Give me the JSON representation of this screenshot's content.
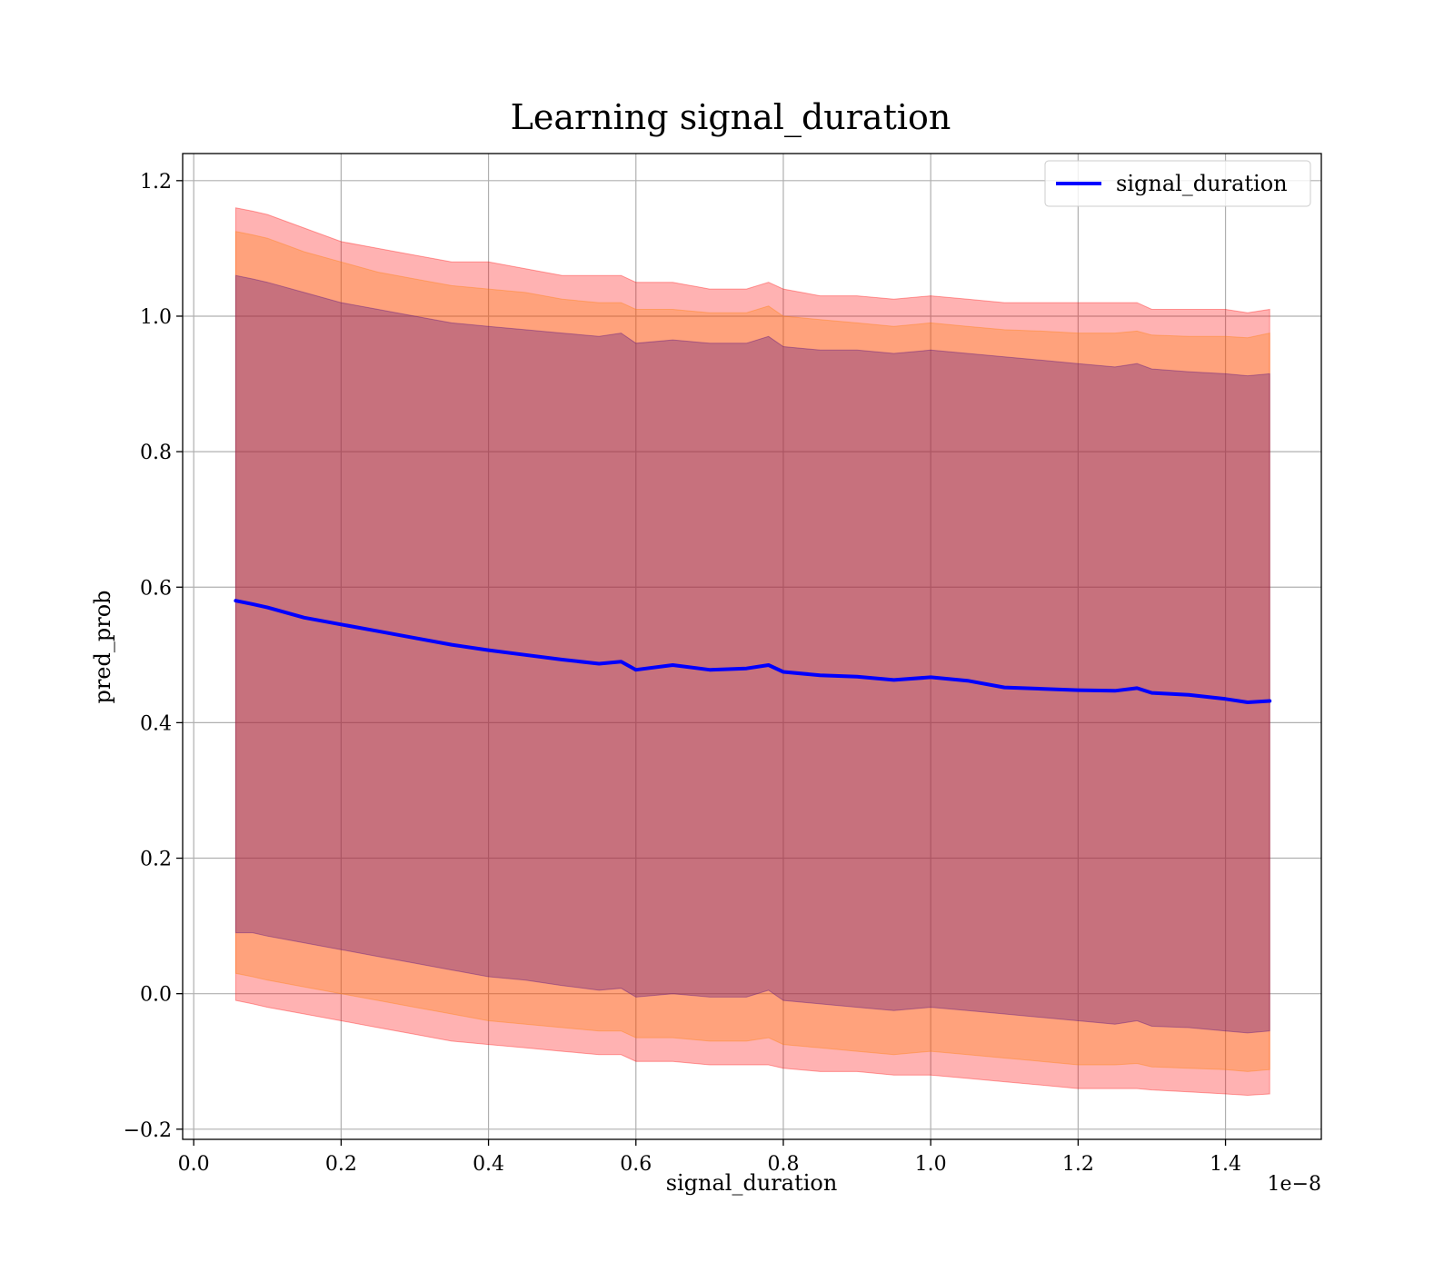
{
  "chart_data": {
    "type": "line",
    "title": "Learning signal_duration",
    "xlabel": "signal_duration",
    "ylabel": "pred_prob",
    "x_offset_label": "1e−8",
    "xlim": [
      -0.015,
      1.53
    ],
    "ylim": [
      -0.215,
      1.24
    ],
    "grid": true,
    "legend_position": "top-right",
    "x_ticks": [
      0.0,
      0.2,
      0.4,
      0.6,
      0.8,
      1.0,
      1.2,
      1.4
    ],
    "x_tick_labels": [
      "0.0",
      "0.2",
      "0.4",
      "0.6",
      "0.8",
      "1.0",
      "1.2",
      "1.4"
    ],
    "y_ticks": [
      -0.2,
      0.0,
      0.2,
      0.4,
      0.6,
      0.8,
      1.0,
      1.2
    ],
    "y_tick_labels": [
      "−0.2",
      "0.0",
      "0.2",
      "0.4",
      "0.6",
      "0.8",
      "1.0",
      "1.2"
    ],
    "x": [
      0.057,
      0.08,
      0.1,
      0.15,
      0.2,
      0.25,
      0.3,
      0.35,
      0.4,
      0.45,
      0.5,
      0.55,
      0.58,
      0.6,
      0.65,
      0.7,
      0.75,
      0.78,
      0.8,
      0.85,
      0.9,
      0.95,
      1.0,
      1.05,
      1.1,
      1.15,
      1.2,
      1.25,
      1.28,
      1.3,
      1.35,
      1.4,
      1.43,
      1.46
    ],
    "series": [
      {
        "name": "signal_duration",
        "color": "#0000ff",
        "values": [
          0.58,
          0.575,
          0.57,
          0.555,
          0.545,
          0.535,
          0.525,
          0.515,
          0.507,
          0.5,
          0.493,
          0.487,
          0.49,
          0.478,
          0.485,
          0.478,
          0.48,
          0.485,
          0.475,
          0.47,
          0.468,
          0.463,
          0.467,
          0.462,
          0.452,
          0.45,
          0.448,
          0.447,
          0.451,
          0.444,
          0.441,
          0.435,
          0.43,
          0.432
        ]
      }
    ],
    "bands": [
      {
        "color": "#ff0000",
        "opacity": 0.3,
        "upper": [
          1.16,
          1.155,
          1.15,
          1.13,
          1.11,
          1.1,
          1.09,
          1.08,
          1.08,
          1.07,
          1.06,
          1.06,
          1.06,
          1.05,
          1.05,
          1.04,
          1.04,
          1.05,
          1.04,
          1.03,
          1.03,
          1.025,
          1.03,
          1.025,
          1.02,
          1.02,
          1.02,
          1.02,
          1.02,
          1.01,
          1.01,
          1.01,
          1.005,
          1.01
        ],
        "lower": [
          -0.01,
          -0.015,
          -0.02,
          -0.03,
          -0.04,
          -0.05,
          -0.06,
          -0.07,
          -0.075,
          -0.08,
          -0.085,
          -0.09,
          -0.09,
          -0.1,
          -0.1,
          -0.105,
          -0.105,
          -0.105,
          -0.11,
          -0.115,
          -0.115,
          -0.12,
          -0.12,
          -0.125,
          -0.13,
          -0.135,
          -0.14,
          -0.14,
          -0.14,
          -0.142,
          -0.145,
          -0.148,
          -0.15,
          -0.148
        ]
      },
      {
        "color": "#ff7f00",
        "opacity": 0.3,
        "upper": [
          1.125,
          1.12,
          1.115,
          1.095,
          1.08,
          1.065,
          1.055,
          1.045,
          1.04,
          1.035,
          1.025,
          1.02,
          1.02,
          1.01,
          1.01,
          1.005,
          1.005,
          1.015,
          1.0,
          0.995,
          0.99,
          0.985,
          0.99,
          0.985,
          0.98,
          0.978,
          0.975,
          0.975,
          0.978,
          0.972,
          0.97,
          0.97,
          0.968,
          0.975
        ],
        "lower": [
          0.03,
          0.025,
          0.02,
          0.01,
          0.0,
          -0.01,
          -0.02,
          -0.03,
          -0.04,
          -0.045,
          -0.05,
          -0.055,
          -0.055,
          -0.065,
          -0.065,
          -0.07,
          -0.07,
          -0.065,
          -0.075,
          -0.08,
          -0.085,
          -0.09,
          -0.085,
          -0.09,
          -0.095,
          -0.1,
          -0.105,
          -0.105,
          -0.103,
          -0.108,
          -0.11,
          -0.112,
          -0.115,
          -0.112
        ]
      },
      {
        "color": "#440080",
        "opacity": 0.3,
        "upper": [
          1.06,
          1.055,
          1.05,
          1.035,
          1.02,
          1.01,
          1.0,
          0.99,
          0.985,
          0.98,
          0.975,
          0.97,
          0.975,
          0.96,
          0.965,
          0.96,
          0.96,
          0.97,
          0.955,
          0.95,
          0.95,
          0.945,
          0.95,
          0.945,
          0.94,
          0.935,
          0.93,
          0.925,
          0.93,
          0.922,
          0.918,
          0.915,
          0.912,
          0.915
        ],
        "lower": [
          0.09,
          0.09,
          0.085,
          0.075,
          0.065,
          0.055,
          0.045,
          0.035,
          0.025,
          0.02,
          0.012,
          0.005,
          0.008,
          -0.005,
          0.0,
          -0.005,
          -0.005,
          0.005,
          -0.01,
          -0.015,
          -0.02,
          -0.025,
          -0.02,
          -0.025,
          -0.03,
          -0.035,
          -0.04,
          -0.045,
          -0.04,
          -0.048,
          -0.05,
          -0.055,
          -0.058,
          -0.055
        ]
      }
    ]
  }
}
